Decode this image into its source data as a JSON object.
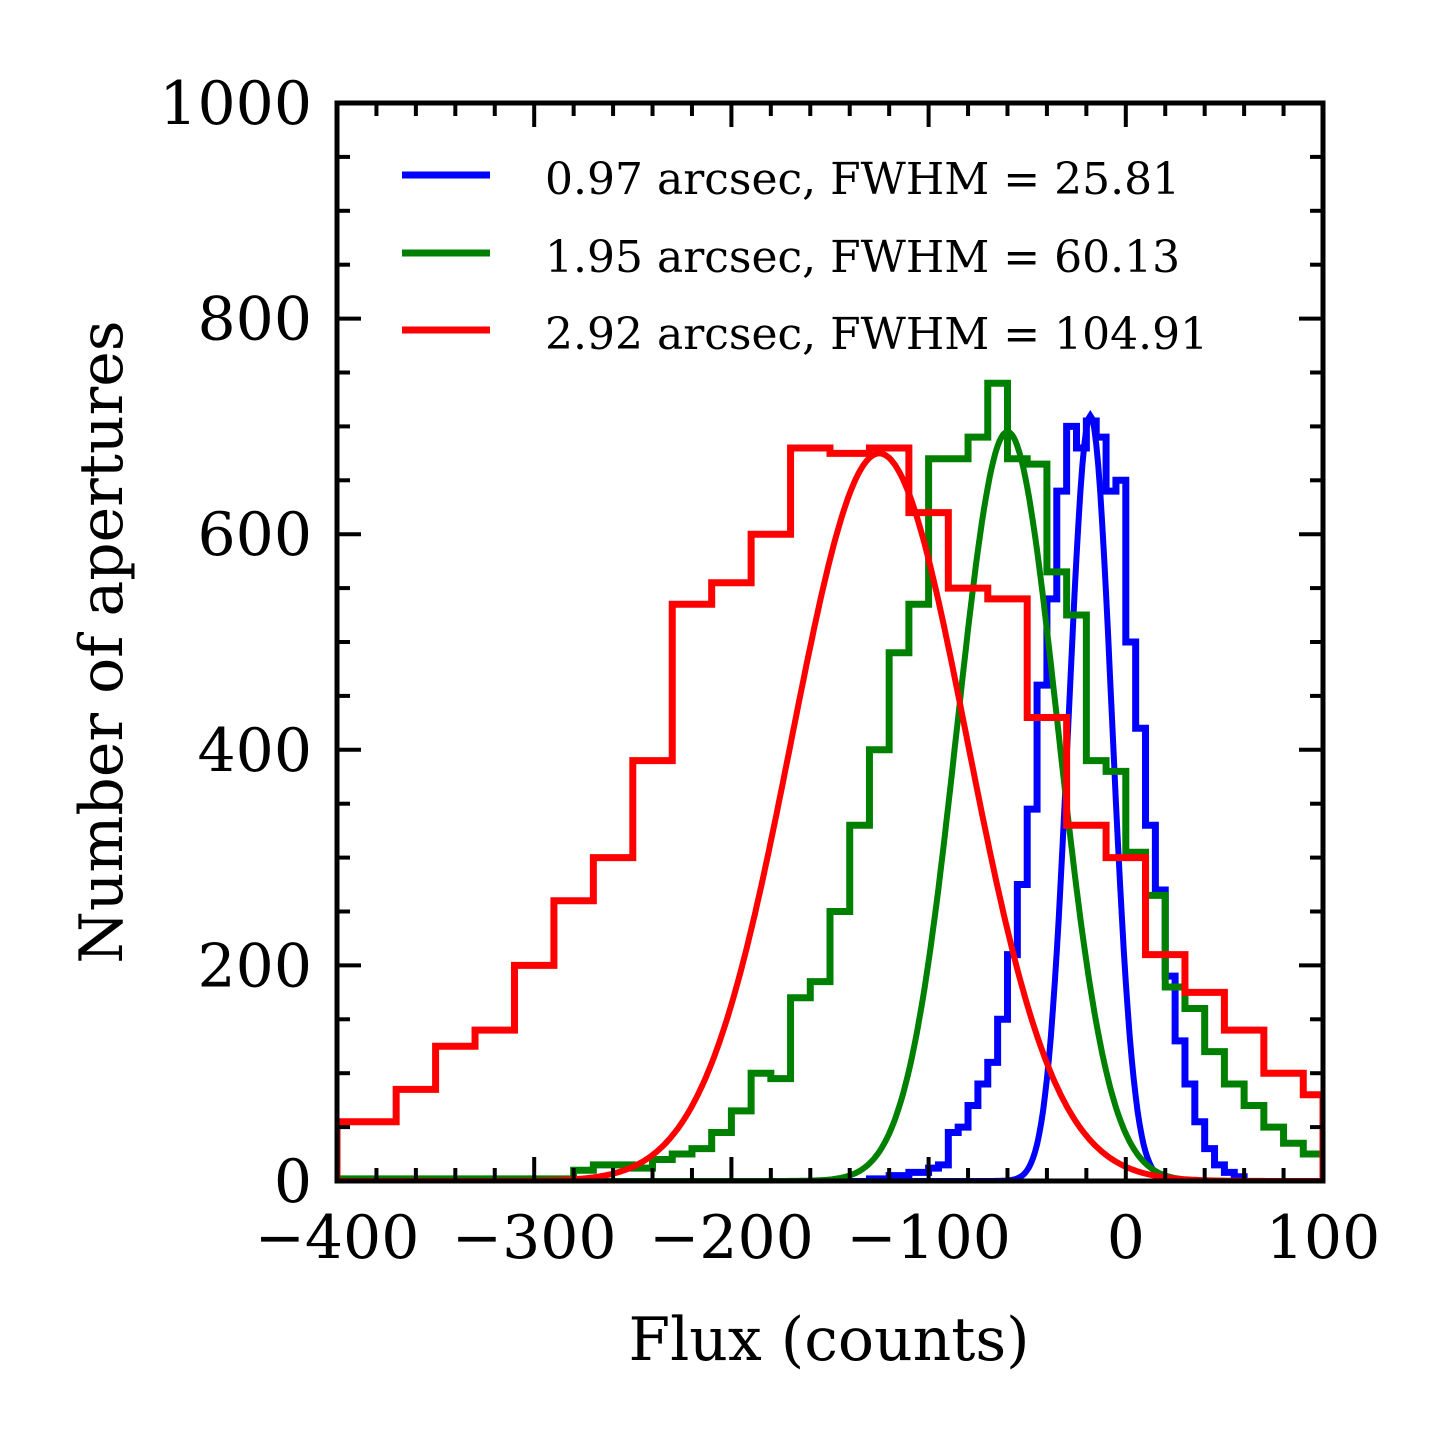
{
  "chart_data": {
    "type": "histogram",
    "xlabel": "Flux (counts)",
    "ylabel": "Number of apertures",
    "xlim": [
      -400,
      100
    ],
    "ylim": [
      0,
      1000
    ],
    "xticks": [
      -400,
      -300,
      -200,
      -100,
      0,
      100
    ],
    "xtick_labels": [
      "−400",
      "−300",
      "−200",
      "−100",
      "0",
      "100"
    ],
    "yticks": [
      0,
      200,
      400,
      600,
      800,
      1000
    ],
    "ytick_labels": [
      "0",
      "200",
      "400",
      "600",
      "800",
      "1000"
    ],
    "grid": false,
    "legend_position": "top-right",
    "series": [
      {
        "name": "0.97 arcsec, FWHM = 25.81",
        "color": "#0000ff",
        "hist_edges": [
          -130,
          -120,
          -110,
          -100,
          -95,
          -90,
          -85,
          -80,
          -75,
          -70,
          -65,
          -60,
          -55,
          -50,
          -45,
          -40,
          -35,
          -30,
          -25,
          -20,
          -15,
          -10,
          -5,
          0,
          5,
          10,
          15,
          20,
          25,
          30,
          35,
          40,
          45,
          50,
          55,
          60
        ],
        "hist_counts": [
          2,
          5,
          8,
          12,
          15,
          45,
          50,
          70,
          90,
          110,
          150,
          210,
          275,
          345,
          460,
          540,
          640,
          700,
          680,
          705,
          690,
          640,
          650,
          500,
          420,
          330,
          270,
          190,
          130,
          90,
          55,
          30,
          15,
          8,
          4
        ],
        "fit_mu": -18,
        "fit_peak": 710,
        "fit_fwhm": 25.81
      },
      {
        "name": "1.95 arcsec, FWHM = 60.13",
        "color": "#008000",
        "hist_edges": [
          -400,
          -280,
          -270,
          -250,
          -240,
          -230,
          -220,
          -210,
          -200,
          -190,
          -180,
          -170,
          -160,
          -150,
          -140,
          -130,
          -120,
          -110,
          -100,
          -90,
          -80,
          -70,
          -60,
          -50,
          -40,
          -30,
          -20,
          -10,
          0,
          10,
          20,
          30,
          40,
          50,
          60,
          70,
          80,
          90,
          100
        ],
        "hist_counts": [
          2,
          10,
          15,
          12,
          20,
          25,
          30,
          45,
          65,
          100,
          95,
          170,
          185,
          250,
          330,
          400,
          490,
          535,
          670,
          670,
          690,
          740,
          670,
          665,
          565,
          525,
          390,
          380,
          305,
          265,
          180,
          160,
          120,
          90,
          70,
          50,
          35,
          25
        ],
        "fit_mu": -60,
        "fit_peak": 695,
        "fit_fwhm": 60.13
      },
      {
        "name": "2.92 arcsec, FWHM = 104.91",
        "color": "#ff0000",
        "hist_edges": [
          -400,
          -370,
          -350,
          -330,
          -310,
          -290,
          -270,
          -250,
          -230,
          -210,
          -190,
          -170,
          -150,
          -130,
          -110,
          -90,
          -70,
          -50,
          -30,
          -10,
          10,
          30,
          50,
          70,
          90,
          100
        ],
        "hist_counts": [
          55,
          85,
          125,
          140,
          200,
          260,
          300,
          390,
          535,
          555,
          600,
          680,
          675,
          680,
          620,
          550,
          540,
          430,
          330,
          300,
          210,
          175,
          140,
          100,
          80
        ],
        "fit_mu": -125,
        "fit_peak": 675,
        "fit_fwhm": 104.91
      }
    ]
  }
}
